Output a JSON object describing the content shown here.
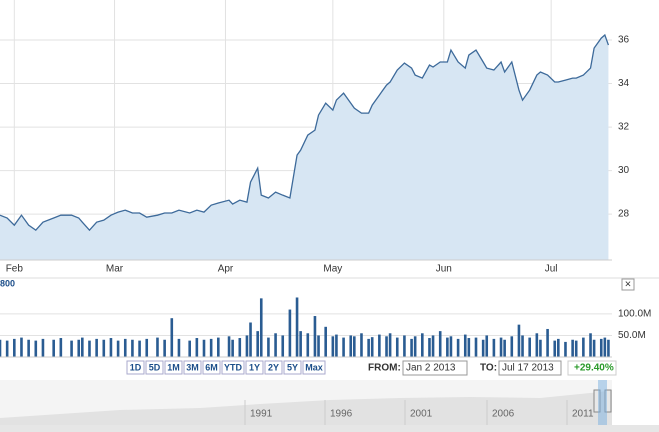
{
  "chart_data": [
    {
      "type": "line",
      "color": "#3d6a9a",
      "fill": "#d7e6f3",
      "grid": true,
      "x": [
        28,
        30,
        32,
        34,
        36,
        38,
        40,
        43,
        45,
        48,
        50,
        51,
        53,
        55,
        57,
        59,
        61,
        63,
        65,
        67,
        69,
        72,
        74,
        76,
        78,
        81,
        83,
        85,
        87,
        89,
        92,
        93,
        95,
        97,
        98,
        100,
        101,
        103,
        105,
        107,
        109,
        111,
        112,
        114,
        116,
        117,
        119,
        121,
        122,
        124,
        126,
        127,
        129,
        131,
        132,
        134,
        136,
        137,
        139,
        141,
        143,
        144,
        146,
        148,
        149,
        151,
        153,
        154,
        156,
        158,
        159,
        161,
        163,
        164,
        166,
        168,
        169,
        171,
        173,
        174,
        176,
        178,
        179,
        181,
        183,
        184,
        186,
        188,
        189,
        191,
        193,
        194,
        196,
        197,
        198
      ],
      "values": [
        27.95,
        27.82,
        27.49,
        27.95,
        27.49,
        27.26,
        27.63,
        27.82,
        27.95,
        27.95,
        27.82,
        27.63,
        27.26,
        27.63,
        27.72,
        27.95,
        28.09,
        28.18,
        28.05,
        28.05,
        27.86,
        27.95,
        28.05,
        28.05,
        28.18,
        28.05,
        28.18,
        28.09,
        28.41,
        28.51,
        28.64,
        28.46,
        28.64,
        28.55,
        29.47,
        30.11,
        28.87,
        28.74,
        29.01,
        28.87,
        28.74,
        30.71,
        30.94,
        31.63,
        31.86,
        32.55,
        33.1,
        32.78,
        33.24,
        33.56,
        33.1,
        32.87,
        32.64,
        32.64,
        33.01,
        33.47,
        33.93,
        34.07,
        34.62,
        34.94,
        34.71,
        34.39,
        34.25,
        34.85,
        34.76,
        34.99,
        34.99,
        35.54,
        34.99,
        34.71,
        35.31,
        35.54,
        34.99,
        34.71,
        34.62,
        34.99,
        34.53,
        34.99,
        33.7,
        33.24,
        33.7,
        34.39,
        34.53,
        34.39,
        34.07,
        34.07,
        34.16,
        34.25,
        34.25,
        34.39,
        34.71,
        35.63,
        36.09,
        36.23,
        35.77
      ],
      "xlim": [
        28,
        199
      ],
      "xticks": [
        {
          "value": 32,
          "label": "Feb"
        },
        {
          "value": 60,
          "label": "Mar"
        },
        {
          "value": 91,
          "label": "Apr"
        },
        {
          "value": 121,
          "label": "May"
        },
        {
          "value": 152,
          "label": "Jun"
        },
        {
          "value": 182,
          "label": "Jul"
        }
      ],
      "ylim": [
        25.89,
        37.84
      ],
      "yticks": [
        28,
        30,
        32,
        34,
        36
      ]
    },
    {
      "type": "bar",
      "color": "#2a5c92",
      "grid": true,
      "x": [
        28,
        30,
        32,
        34,
        36,
        38,
        40,
        43,
        45,
        48,
        50,
        51,
        53,
        55,
        57,
        59,
        61,
        63,
        65,
        67,
        69,
        72,
        74,
        76,
        78,
        81,
        83,
        85,
        87,
        89,
        92,
        93,
        95,
        97,
        98,
        100,
        101,
        103,
        105,
        107,
        109,
        111,
        112,
        114,
        116,
        117,
        119,
        121,
        122,
        124,
        126,
        127,
        129,
        131,
        132,
        134,
        136,
        137,
        139,
        141,
        143,
        144,
        146,
        148,
        149,
        151,
        153,
        154,
        156,
        158,
        159,
        161,
        163,
        164,
        166,
        168,
        169,
        171,
        173,
        174,
        176,
        178,
        179,
        181,
        183,
        184,
        186,
        188,
        189,
        191,
        193,
        194,
        196,
        197,
        198
      ],
      "values": [
        40,
        38,
        42,
        45,
        40,
        38,
        42,
        40,
        44,
        38,
        40,
        45,
        38,
        42,
        40,
        44,
        38,
        42,
        40,
        38,
        42,
        45,
        40,
        90,
        42,
        38,
        44,
        40,
        42,
        45,
        48,
        40,
        44,
        50,
        80,
        60,
        136,
        45,
        55,
        50,
        110,
        138,
        60,
        55,
        95,
        50,
        70,
        48,
        52,
        45,
        50,
        48,
        55,
        42,
        46,
        52,
        48,
        55,
        45,
        50,
        42,
        48,
        55,
        44,
        50,
        60,
        45,
        48,
        42,
        52,
        44,
        45,
        40,
        50,
        42,
        45,
        40,
        48,
        75,
        50,
        45,
        55,
        40,
        65,
        38,
        42,
        35,
        40,
        38,
        45,
        55,
        40,
        42,
        45,
        40
      ],
      "xlim": [
        28,
        199
      ],
      "ylim": [
        0,
        160
      ],
      "yticks": [
        {
          "value": 50,
          "label": "50.0M"
        },
        {
          "value": 100,
          "label": "100.0M"
        }
      ]
    }
  ],
  "legend_fragment": "800",
  "range_buttons": [
    "1D",
    "5D",
    "1M",
    "3M",
    "6M",
    "YTD",
    "1Y",
    "2Y",
    "5Y",
    "Max"
  ],
  "from_label": "FROM:",
  "from_value": "Jan 2 2013",
  "to_label": "TO:",
  "to_value": "Jul 17 2013",
  "change": "+29.40%",
  "close_button": "×",
  "navigator_labels": [
    "1991",
    "1996",
    "2001",
    "2006",
    "2011"
  ]
}
